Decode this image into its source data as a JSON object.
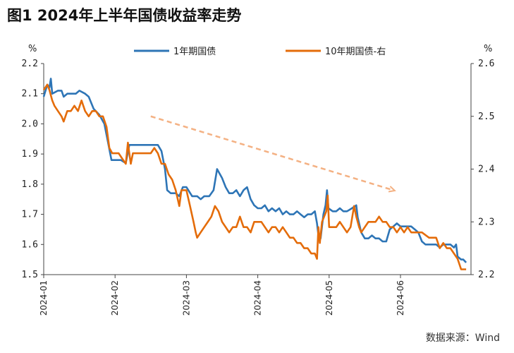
{
  "title": "图1  2024年上半年国债收益率走势",
  "source": "数据来源：Wind",
  "chart_data": {
    "type": "line",
    "left_axis": {
      "unit": "%",
      "ylim": [
        1.5,
        2.2
      ],
      "ticks": [
        "2.2",
        "2.1",
        "2.0",
        "1.9",
        "1.8",
        "1.7",
        "1.6",
        "1.5"
      ]
    },
    "right_axis": {
      "unit": "%",
      "ylim": [
        2.2,
        2.6
      ],
      "ticks": [
        "2.6",
        "2.5",
        "2.4",
        "2.3",
        "2.2"
      ]
    },
    "x_ticks": [
      "2024-01",
      "2024-02",
      "2024-03",
      "2024-04",
      "2024-05",
      "2024-06"
    ],
    "x_range_months": [
      0,
      5.95
    ],
    "legend_position": "top",
    "trend_arrow": {
      "color": "#f4b183",
      "from": [
        1.5,
        2.5
      ],
      "to": [
        4.9,
        2.36
      ],
      "axis": "right"
    },
    "series": [
      {
        "name": "1年期国债",
        "color": "#2e75b6",
        "axis": "left",
        "points": [
          [
            0.0,
            2.09
          ],
          [
            0.05,
            2.13
          ],
          [
            0.08,
            2.12
          ],
          [
            0.1,
            2.15
          ],
          [
            0.12,
            2.1
          ],
          [
            0.2,
            2.11
          ],
          [
            0.25,
            2.11
          ],
          [
            0.28,
            2.09
          ],
          [
            0.33,
            2.1
          ],
          [
            0.38,
            2.1
          ],
          [
            0.45,
            2.1
          ],
          [
            0.5,
            2.11
          ],
          [
            0.58,
            2.1
          ],
          [
            0.63,
            2.09
          ],
          [
            0.7,
            2.05
          ],
          [
            0.78,
            2.03
          ],
          [
            0.85,
            2.0
          ],
          [
            0.9,
            1.94
          ],
          [
            0.95,
            1.88
          ],
          [
            1.0,
            1.88
          ],
          [
            1.08,
            1.88
          ],
          [
            1.15,
            1.87
          ],
          [
            1.2,
            1.93
          ],
          [
            1.3,
            1.93
          ],
          [
            1.4,
            1.93
          ],
          [
            1.5,
            1.93
          ],
          [
            1.6,
            1.93
          ],
          [
            1.65,
            1.91
          ],
          [
            1.7,
            1.85
          ],
          [
            1.73,
            1.78
          ],
          [
            1.78,
            1.77
          ],
          [
            1.85,
            1.77
          ],
          [
            1.9,
            1.76
          ],
          [
            1.95,
            1.79
          ],
          [
            2.0,
            1.79
          ],
          [
            2.08,
            1.76
          ],
          [
            2.15,
            1.76
          ],
          [
            2.2,
            1.75
          ],
          [
            2.25,
            1.76
          ],
          [
            2.32,
            1.76
          ],
          [
            2.38,
            1.78
          ],
          [
            2.43,
            1.85
          ],
          [
            2.5,
            1.82
          ],
          [
            2.55,
            1.79
          ],
          [
            2.6,
            1.77
          ],
          [
            2.65,
            1.77
          ],
          [
            2.7,
            1.78
          ],
          [
            2.75,
            1.76
          ],
          [
            2.8,
            1.78
          ],
          [
            2.85,
            1.79
          ],
          [
            2.9,
            1.75
          ],
          [
            2.95,
            1.73
          ],
          [
            3.0,
            1.72
          ],
          [
            3.05,
            1.72
          ],
          [
            3.1,
            1.73
          ],
          [
            3.15,
            1.71
          ],
          [
            3.2,
            1.72
          ],
          [
            3.25,
            1.71
          ],
          [
            3.3,
            1.72
          ],
          [
            3.35,
            1.7
          ],
          [
            3.4,
            1.71
          ],
          [
            3.45,
            1.7
          ],
          [
            3.5,
            1.7
          ],
          [
            3.55,
            1.71
          ],
          [
            3.6,
            1.7
          ],
          [
            3.65,
            1.69
          ],
          [
            3.7,
            1.7
          ],
          [
            3.75,
            1.7
          ],
          [
            3.8,
            1.71
          ],
          [
            3.83,
            1.67
          ],
          [
            3.85,
            1.63
          ],
          [
            3.88,
            1.62
          ],
          [
            3.92,
            1.7
          ],
          [
            3.95,
            1.73
          ],
          [
            3.97,
            1.78
          ],
          [
            3.99,
            1.72
          ],
          [
            4.05,
            1.71
          ],
          [
            4.1,
            1.71
          ],
          [
            4.15,
            1.72
          ],
          [
            4.2,
            1.71
          ],
          [
            4.25,
            1.71
          ],
          [
            4.32,
            1.72
          ],
          [
            4.38,
            1.73
          ],
          [
            4.4,
            1.69
          ],
          [
            4.45,
            1.64
          ],
          [
            4.5,
            1.62
          ],
          [
            4.55,
            1.62
          ],
          [
            4.6,
            1.63
          ],
          [
            4.65,
            1.62
          ],
          [
            4.7,
            1.62
          ],
          [
            4.75,
            1.61
          ],
          [
            4.8,
            1.61
          ],
          [
            4.85,
            1.65
          ],
          [
            4.9,
            1.66
          ],
          [
            4.95,
            1.67
          ],
          [
            5.0,
            1.66
          ],
          [
            5.05,
            1.66
          ],
          [
            5.1,
            1.66
          ],
          [
            5.15,
            1.66
          ],
          [
            5.2,
            1.65
          ],
          [
            5.25,
            1.64
          ],
          [
            5.3,
            1.61
          ],
          [
            5.35,
            1.6
          ],
          [
            5.4,
            1.6
          ],
          [
            5.45,
            1.6
          ],
          [
            5.5,
            1.6
          ],
          [
            5.55,
            1.59
          ],
          [
            5.6,
            1.6
          ],
          [
            5.65,
            1.6
          ],
          [
            5.7,
            1.6
          ],
          [
            5.75,
            1.59
          ],
          [
            5.78,
            1.6
          ],
          [
            5.8,
            1.56
          ],
          [
            5.85,
            1.55
          ],
          [
            5.88,
            1.55
          ],
          [
            5.92,
            1.54
          ]
        ]
      },
      {
        "name": "10年期国债-右",
        "color": "#e46c0a",
        "axis": "right",
        "points": [
          [
            0.0,
            2.55
          ],
          [
            0.05,
            2.56
          ],
          [
            0.08,
            2.55
          ],
          [
            0.12,
            2.53
          ],
          [
            0.15,
            2.52
          ],
          [
            0.2,
            2.51
          ],
          [
            0.25,
            2.5
          ],
          [
            0.28,
            2.49
          ],
          [
            0.33,
            2.51
          ],
          [
            0.38,
            2.51
          ],
          [
            0.43,
            2.52
          ],
          [
            0.48,
            2.51
          ],
          [
            0.53,
            2.53
          ],
          [
            0.58,
            2.51
          ],
          [
            0.63,
            2.5
          ],
          [
            0.68,
            2.51
          ],
          [
            0.73,
            2.51
          ],
          [
            0.78,
            2.5
          ],
          [
            0.83,
            2.5
          ],
          [
            0.88,
            2.48
          ],
          [
            0.92,
            2.44
          ],
          [
            0.96,
            2.43
          ],
          [
            1.0,
            2.43
          ],
          [
            1.05,
            2.43
          ],
          [
            1.1,
            2.42
          ],
          [
            1.15,
            2.41
          ],
          [
            1.18,
            2.45
          ],
          [
            1.2,
            2.43
          ],
          [
            1.22,
            2.41
          ],
          [
            1.25,
            2.43
          ],
          [
            1.3,
            2.43
          ],
          [
            1.4,
            2.43
          ],
          [
            1.5,
            2.43
          ],
          [
            1.55,
            2.44
          ],
          [
            1.6,
            2.43
          ],
          [
            1.65,
            2.41
          ],
          [
            1.7,
            2.41
          ],
          [
            1.75,
            2.39
          ],
          [
            1.8,
            2.38
          ],
          [
            1.85,
            2.36
          ],
          [
            1.9,
            2.33
          ],
          [
            1.93,
            2.36
          ],
          [
            1.97,
            2.36
          ],
          [
            2.0,
            2.36
          ],
          [
            2.05,
            2.33
          ],
          [
            2.1,
            2.3
          ],
          [
            2.13,
            2.28
          ],
          [
            2.15,
            2.27
          ],
          [
            2.2,
            2.28
          ],
          [
            2.25,
            2.29
          ],
          [
            2.3,
            2.3
          ],
          [
            2.35,
            2.31
          ],
          [
            2.4,
            2.33
          ],
          [
            2.45,
            2.32
          ],
          [
            2.5,
            2.3
          ],
          [
            2.55,
            2.29
          ],
          [
            2.6,
            2.28
          ],
          [
            2.65,
            2.29
          ],
          [
            2.7,
            2.29
          ],
          [
            2.75,
            2.31
          ],
          [
            2.8,
            2.29
          ],
          [
            2.85,
            2.29
          ],
          [
            2.9,
            2.28
          ],
          [
            2.95,
            2.3
          ],
          [
            3.0,
            2.3
          ],
          [
            3.05,
            2.3
          ],
          [
            3.1,
            2.29
          ],
          [
            3.15,
            2.28
          ],
          [
            3.2,
            2.29
          ],
          [
            3.25,
            2.29
          ],
          [
            3.3,
            2.28
          ],
          [
            3.35,
            2.29
          ],
          [
            3.4,
            2.28
          ],
          [
            3.45,
            2.27
          ],
          [
            3.5,
            2.27
          ],
          [
            3.55,
            2.26
          ],
          [
            3.6,
            2.26
          ],
          [
            3.65,
            2.25
          ],
          [
            3.7,
            2.25
          ],
          [
            3.75,
            2.24
          ],
          [
            3.8,
            2.24
          ],
          [
            3.83,
            2.23
          ],
          [
            3.85,
            2.29
          ],
          [
            3.87,
            2.26
          ],
          [
            3.9,
            2.3
          ],
          [
            3.93,
            2.31
          ],
          [
            3.96,
            2.32
          ],
          [
            3.98,
            2.35
          ],
          [
            4.0,
            2.29
          ],
          [
            4.05,
            2.29
          ],
          [
            4.1,
            2.29
          ],
          [
            4.15,
            2.3
          ],
          [
            4.2,
            2.29
          ],
          [
            4.25,
            2.28
          ],
          [
            4.3,
            2.29
          ],
          [
            4.35,
            2.33
          ],
          [
            4.38,
            2.31
          ],
          [
            4.42,
            2.29
          ],
          [
            4.45,
            2.28
          ],
          [
            4.5,
            2.29
          ],
          [
            4.55,
            2.3
          ],
          [
            4.6,
            2.3
          ],
          [
            4.65,
            2.3
          ],
          [
            4.7,
            2.31
          ],
          [
            4.75,
            2.3
          ],
          [
            4.8,
            2.3
          ],
          [
            4.85,
            2.29
          ],
          [
            4.9,
            2.29
          ],
          [
            4.95,
            2.28
          ],
          [
            5.0,
            2.29
          ],
          [
            5.05,
            2.28
          ],
          [
            5.1,
            2.29
          ],
          [
            5.15,
            2.28
          ],
          [
            5.2,
            2.28
          ],
          [
            5.3,
            2.28
          ],
          [
            5.4,
            2.27
          ],
          [
            5.5,
            2.27
          ],
          [
            5.55,
            2.25
          ],
          [
            5.6,
            2.26
          ],
          [
            5.65,
            2.25
          ],
          [
            5.7,
            2.25
          ],
          [
            5.75,
            2.24
          ],
          [
            5.8,
            2.23
          ],
          [
            5.85,
            2.21
          ],
          [
            5.88,
            2.21
          ],
          [
            5.92,
            2.21
          ]
        ]
      }
    ]
  }
}
